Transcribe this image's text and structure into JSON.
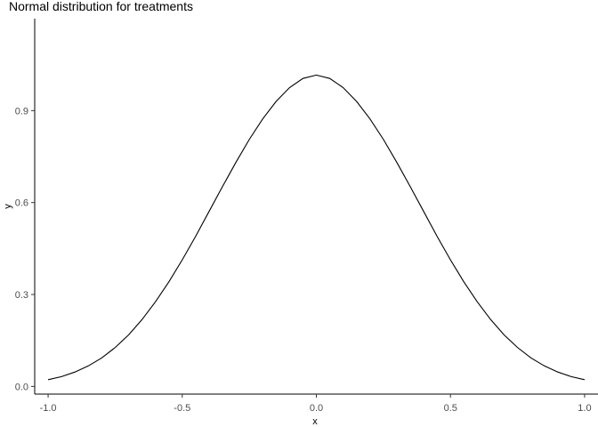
{
  "chart_data": {
    "type": "line",
    "title": "Normal distribution for treatments",
    "xlabel": "x",
    "ylabel": "y",
    "xlim": [
      -1.05,
      1.05
    ],
    "ylim": [
      -0.025,
      1.2
    ],
    "xticks": [
      -1.0,
      -0.5,
      0.0,
      0.5,
      1.0
    ],
    "xtick_labels": [
      "-1.0",
      "-0.5",
      "0.0",
      "0.5",
      "1.0"
    ],
    "yticks": [
      0.0,
      0.3,
      0.6,
      0.9
    ],
    "ytick_labels": [
      "0.0",
      "0.3",
      "0.6",
      "0.9"
    ],
    "grid": false,
    "series": [
      {
        "color": "#000000",
        "x": [
          -1.0,
          -0.95,
          -0.9,
          -0.85,
          -0.8,
          -0.75,
          -0.7,
          -0.65,
          -0.6,
          -0.55,
          -0.5,
          -0.45,
          -0.4,
          -0.35,
          -0.3,
          -0.25,
          -0.2,
          -0.15,
          -0.1,
          -0.05,
          0.0,
          0.05,
          0.1,
          0.15,
          0.2,
          0.25,
          0.3,
          0.35,
          0.4,
          0.45,
          0.5,
          0.55,
          0.6,
          0.65,
          0.7,
          0.75,
          0.8,
          0.85,
          0.9,
          0.95,
          1.0
        ],
        "y": [
          0.022,
          0.032,
          0.047,
          0.067,
          0.093,
          0.127,
          0.168,
          0.218,
          0.276,
          0.341,
          0.413,
          0.49,
          0.571,
          0.652,
          0.731,
          0.806,
          0.873,
          0.93,
          0.975,
          1.005,
          1.016,
          1.005,
          0.975,
          0.93,
          0.873,
          0.806,
          0.731,
          0.652,
          0.571,
          0.49,
          0.413,
          0.341,
          0.276,
          0.218,
          0.168,
          0.127,
          0.093,
          0.067,
          0.047,
          0.032,
          0.022
        ]
      }
    ]
  }
}
